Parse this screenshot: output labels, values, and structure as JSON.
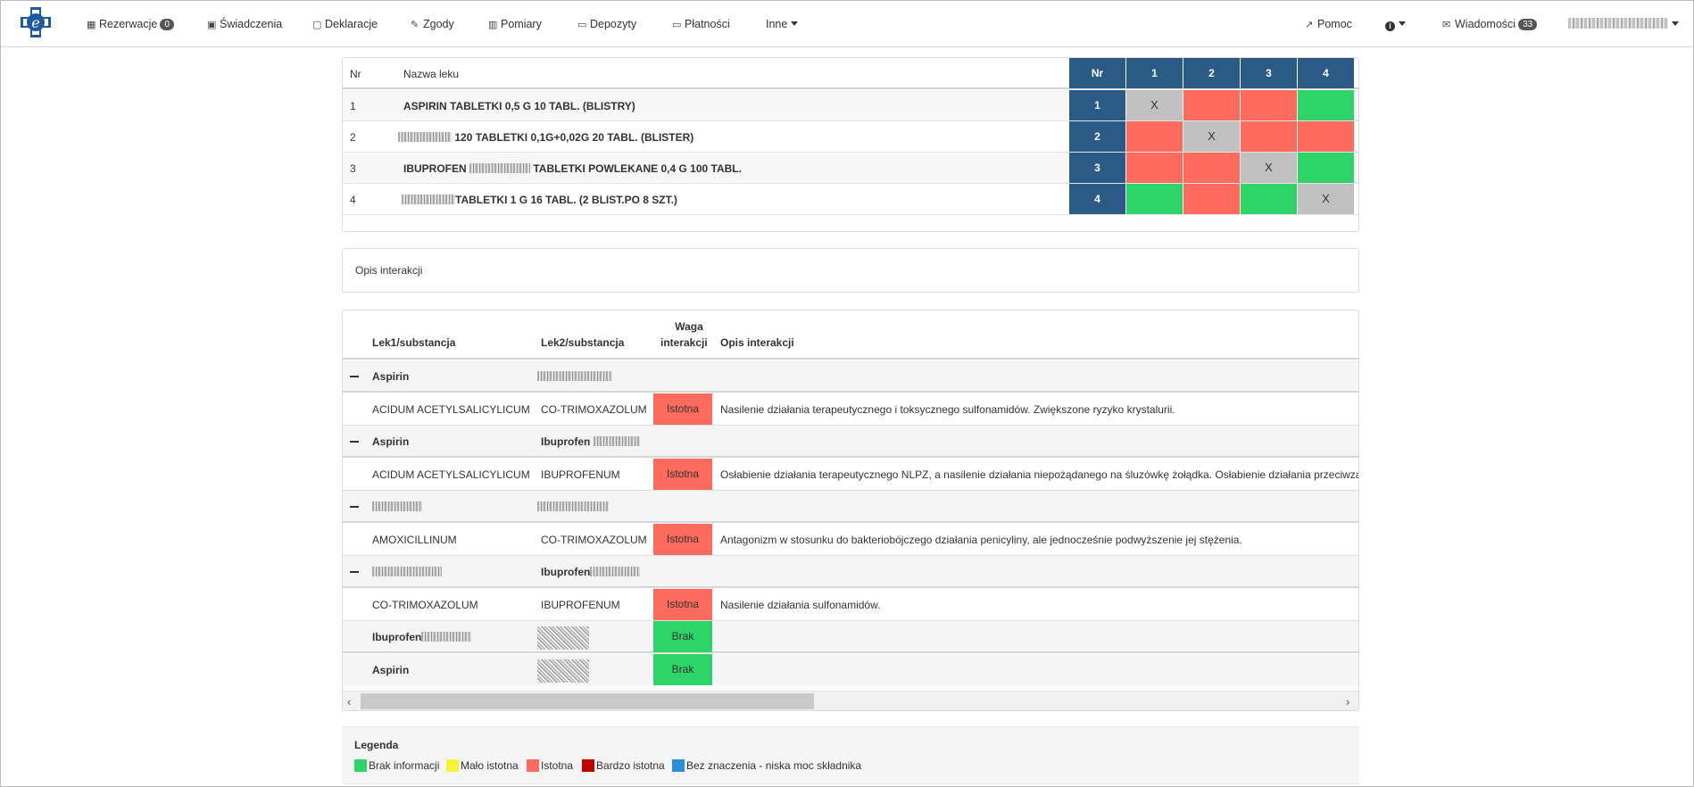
{
  "navbar": {
    "items": [
      {
        "label": "Rezerwacje",
        "badge": "0"
      },
      {
        "label": "Świadczenia"
      },
      {
        "label": "Deklaracje"
      },
      {
        "label": "Zgody"
      },
      {
        "label": "Pomiary"
      },
      {
        "label": "Depozyty"
      },
      {
        "label": "Płatności"
      },
      {
        "label": "Inne"
      }
    ],
    "help": "Pomoc",
    "messages": "Wiadomości",
    "messages_badge": "33"
  },
  "matrix": {
    "col_nr": "Nr",
    "col_name": "Nazwa leku",
    "hdr_nr": "Nr",
    "cols": [
      "1",
      "2",
      "3",
      "4"
    ],
    "rows": [
      {
        "nr": "1",
        "name": "ASPIRIN TABLETKI 0,5 G 10 TABL. (BLISTRY)",
        "cells": [
          "X",
          "",
          "",
          ""
        ]
      },
      {
        "nr": "2",
        "name": "120 TABLETKI 0,1G+0,02G 20 TABL. (BLISTER)",
        "cells": [
          "",
          "X",
          "",
          ""
        ]
      },
      {
        "nr": "3",
        "name_a": "IBUPROFEN",
        "name_b": "TABLETKI POWLEKANE 0,4 G 100 TABL.",
        "cells": [
          "",
          "",
          "X",
          ""
        ]
      },
      {
        "nr": "4",
        "name": "TABLETKI 1 G 16 TABL. (2 BLIST.PO 8 SZT.)",
        "cells": [
          "",
          "",
          "",
          "X"
        ]
      }
    ],
    "colors": {
      "red": "#fd6a5e",
      "green": "#2fd468",
      "grey": "#c0c0c0",
      "header": "#2b5a86"
    }
  },
  "opis": {
    "label": "Opis interakcji"
  },
  "interactions": {
    "headers": {
      "lek1": "Lek1/substancja",
      "lek2": "Lek2/substancja",
      "waga_1": "Waga",
      "waga_2": "interakcji",
      "opis": "Opis interakcji"
    },
    "groups": [
      {
        "lek1": "Aspirin",
        "lek2": ""
      },
      {
        "lek1": "Aspirin",
        "lek2": "Ibuprofen"
      },
      {
        "lek1": "",
        "lek2": ""
      },
      {
        "lek1": "",
        "lek2": "Ibuprofen"
      }
    ],
    "details": [
      {
        "lek1": "ACIDUM ACETYLSALICYLICUM",
        "lek2": "CO-TRIMOXAZOLUM",
        "waga": "Istotna",
        "opis": "Nasilenie działania terapeutycznego i toksycznego sulfonamidów. Zwiększone ryzyko krystalurii."
      },
      {
        "lek1": "ACIDUM ACETYLSALICYLICUM",
        "lek2": "IBUPROFENUM",
        "waga": "Istotna",
        "opis": "Osłabienie działania terapeutycznego NLPZ, a nasilenie działania niepożądanego na śluzówkę żołądka. Osłabienie działania przeciwzakrzepowego"
      },
      {
        "lek1": "AMOXICILLINUM",
        "lek2": "CO-TRIMOXAZOLUM",
        "waga": "Istotna",
        "opis": "Antagonizm w stosunku do bakteriobójczego działania penicyliny, ale jednocześnie podwyższenie jej stężenia."
      },
      {
        "lek1": "CO-TRIMOXAZOLUM",
        "lek2": "IBUPROFENUM",
        "waga": "Istotna",
        "opis": "Nasilenie działania sulfonamidów."
      }
    ],
    "none_rows": [
      {
        "lek1": "Ibuprofen",
        "waga": "Brak"
      },
      {
        "lek1": "Aspirin",
        "waga": "Brak"
      }
    ]
  },
  "legend": {
    "title": "Legenda",
    "items": [
      {
        "label": "Brak informacji",
        "color": "#2fd468"
      },
      {
        "label": "Mało istotna",
        "color": "#f7f13a"
      },
      {
        "label": "Istotna",
        "color": "#fd6a5e"
      },
      {
        "label": "Bardzo istotna",
        "color": "#c00000"
      },
      {
        "label": "Bez znaczenia - niska moc składnika",
        "color": "#2b8fd8"
      }
    ]
  }
}
